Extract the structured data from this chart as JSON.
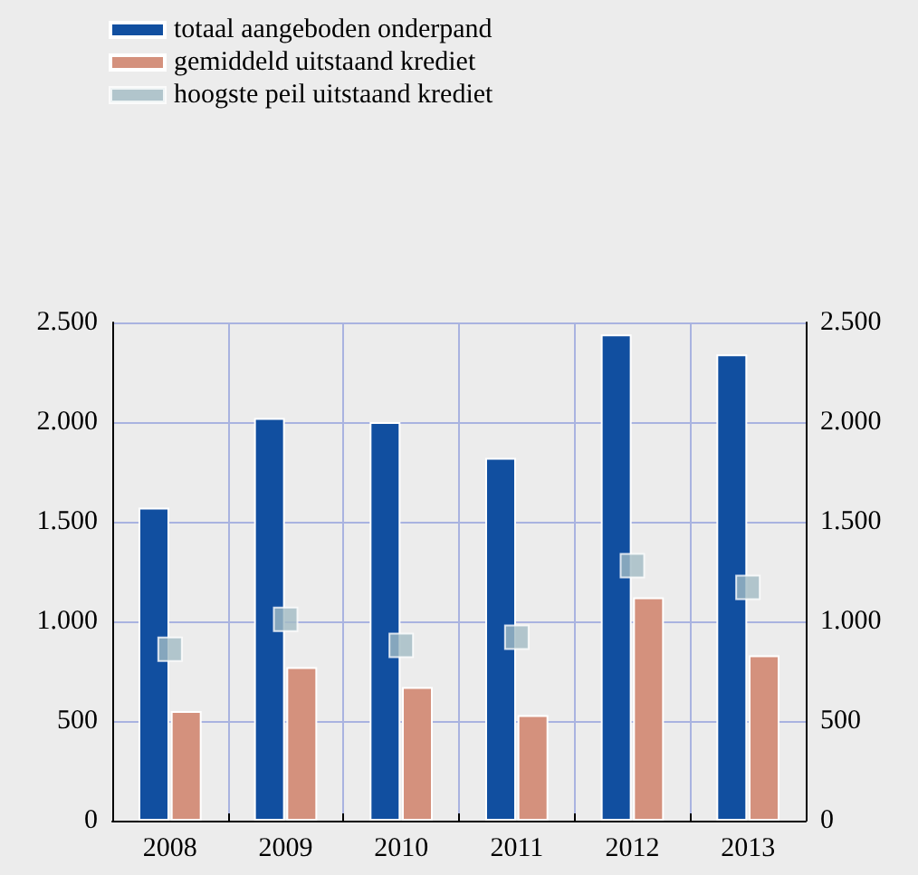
{
  "chart_data": {
    "type": "bar",
    "categories": [
      "2008",
      "2009",
      "2010",
      "2011",
      "2012",
      "2013"
    ],
    "series": [
      {
        "name": "totaal aangeboden onderpand",
        "color": "#114fa0",
        "values": [
          1570,
          2020,
          2000,
          1820,
          2440,
          2340
        ]
      },
      {
        "name": "gemiddeld uitstaand krediet",
        "color": "#d4917d",
        "values": [
          550,
          770,
          670,
          530,
          1120,
          830
        ]
      },
      {
        "name": "hoogste peil uitstaand krediet",
        "type": "scatter",
        "color": "#a3bcc4",
        "values": [
          860,
          1010,
          880,
          920,
          1280,
          1170
        ]
      }
    ],
    "ylim": [
      0,
      2500
    ],
    "yticks": [
      0,
      500,
      {
        "value": 1000,
        "label": "1.000"
      },
      {
        "value": 1500,
        "label": "1.500"
      },
      {
        "value": 2000,
        "label": "2.000"
      },
      {
        "value": 2500,
        "label": "2.500"
      }
    ],
    "y2lim": [
      0,
      2500
    ],
    "y2ticks": [
      0,
      500,
      {
        "value": 1000,
        "label": "1.000"
      },
      {
        "value": 1500,
        "label": "1.500"
      },
      {
        "value": 2000,
        "label": "2.000"
      },
      {
        "value": 2500,
        "label": "2.500"
      }
    ],
    "grid": true,
    "legend": "top left",
    "marker": "square"
  }
}
